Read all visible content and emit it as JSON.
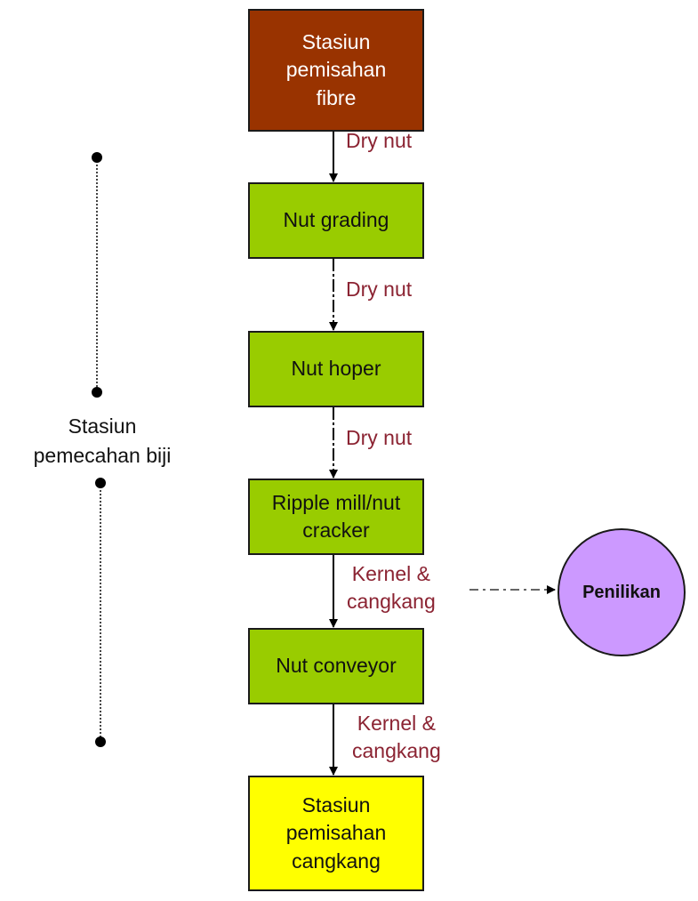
{
  "steps": {
    "start": "Stasiun\npemisahan\nfibre",
    "grading": "Nut grading",
    "hoper": "Nut hoper",
    "ripple": "Ripple mill/nut\ncracker",
    "conveyor": "Nut conveyor",
    "end": "Stasiun\npemisahan\ncangkang"
  },
  "flows": {
    "l1": "Dry nut",
    "l2": "Dry nut",
    "l3": "Dry nut",
    "l4": "Kernel &\ncangkang",
    "l5": "Kernel &\ncangkang"
  },
  "side_label": "Stasiun\npemecahan biji",
  "penilikan": "Penilikan",
  "colors": {
    "start_box": "#993300",
    "process_box": "#99cc00",
    "end_box": "#ffff00",
    "circle": "#cc99ff",
    "flow_label": "#8b2332"
  }
}
